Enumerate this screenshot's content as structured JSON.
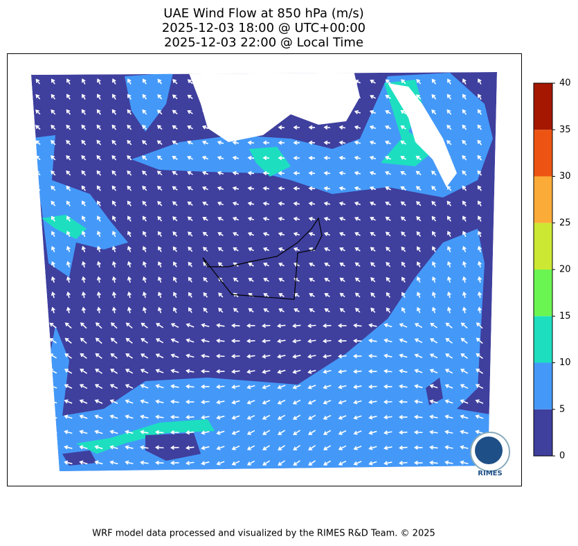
{
  "map": {
    "title": [
      "UAE Wind Flow at 850 hPa (m/s)",
      "2025-12-03 18:00 @ UTC+00:00",
      "2025-12-03 22:00 @ Local Time"
    ],
    "colorbar": {
      "ticks": [
        0,
        5,
        10,
        15,
        20,
        25,
        30,
        35,
        40
      ],
      "colors": [
        "#3f3f9e",
        "#4499f8",
        "#1ddfc0",
        "#6bf552",
        "#cde832",
        "#fbab38",
        "#ed5413",
        "#a51700"
      ]
    },
    "logo": "RIMES",
    "footer": "WRF model data processed and visualized by the RIMES R&D Team. © 2025"
  }
}
